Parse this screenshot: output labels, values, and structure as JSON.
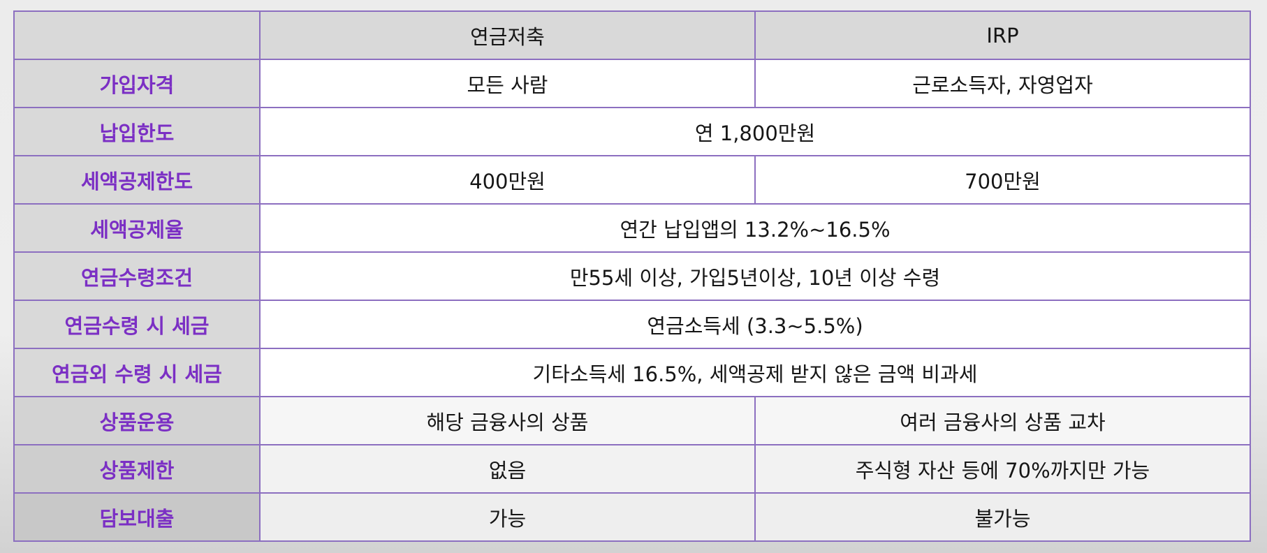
{
  "table": {
    "headers": {
      "corner": "",
      "col_a": "연금저축",
      "col_b": "IRP"
    },
    "rows": [
      {
        "label": "가입자격",
        "a": "모든 사람",
        "b": "근로소득자, 자영업자"
      },
      {
        "label": "납입한도",
        "merged": "연 1,800만원"
      },
      {
        "label": "세액공제한도",
        "a": "400만원",
        "b": "700만원"
      },
      {
        "label": "세액공제율",
        "merged": "연간 납입앱의 13.2%~16.5%"
      },
      {
        "label": "연금수령조건",
        "merged": "만55세 이상, 가입5년이상, 10년 이상 수령"
      },
      {
        "label": "연금수령 시 세금",
        "merged": "연금소득세 (3.3~5.5%)"
      },
      {
        "label": "연금외 수령 시 세금",
        "merged": "기타소득세 16.5%, 세액공제 받지 않은 금액 비과세"
      },
      {
        "label": "상품운용",
        "a": "해당 금융사의 상품",
        "b": "여러 금융사의 상품 교차"
      },
      {
        "label": "상품제한",
        "a": "없음",
        "b": "주식형 자산 등에 70%까지만 가능"
      },
      {
        "label": "담보대출",
        "a": "가능",
        "b": "불가능"
      }
    ]
  },
  "colors": {
    "header_text": "#7b2fc4",
    "border": "#8c6fc0",
    "label_bg": "#d9d9d9",
    "cell_bg": "#ffffff"
  }
}
